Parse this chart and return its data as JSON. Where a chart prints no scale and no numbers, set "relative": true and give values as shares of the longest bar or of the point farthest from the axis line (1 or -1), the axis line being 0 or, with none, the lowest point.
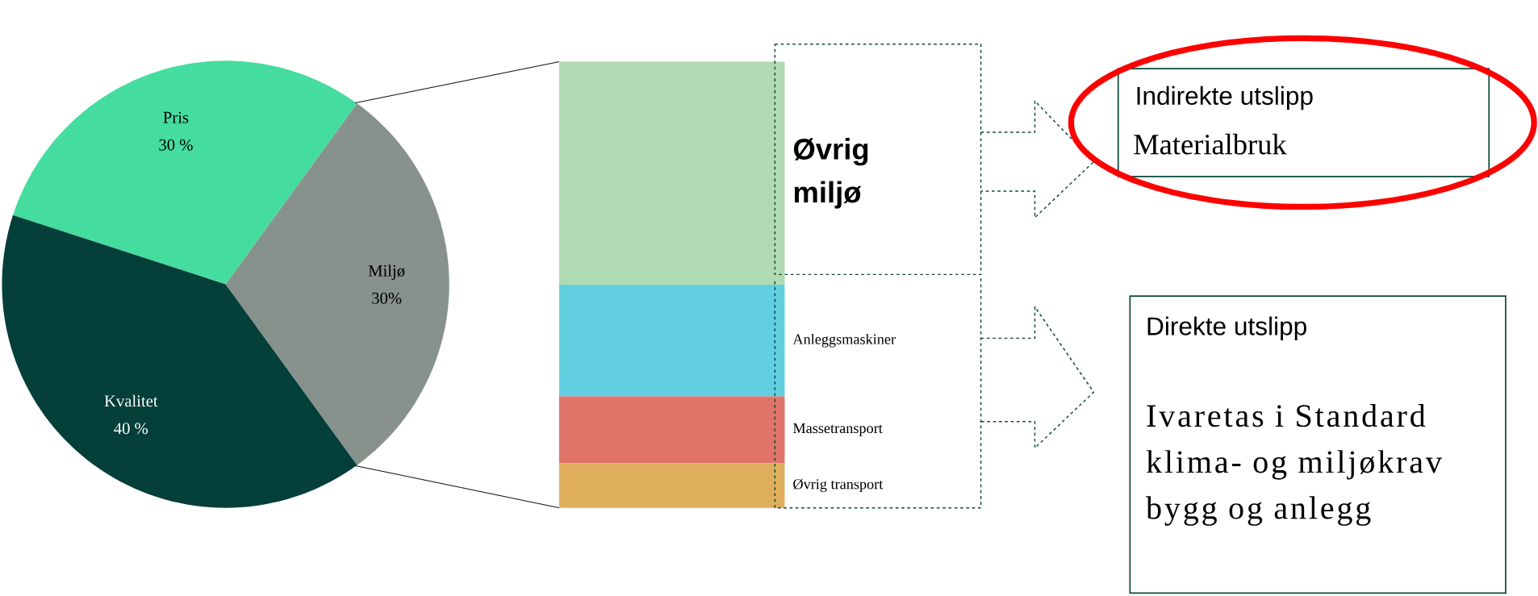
{
  "chart_data": [
    {
      "type": "pie",
      "categories": [
        "Pris",
        "Miljø",
        "Kvalitet"
      ],
      "values": [
        30,
        30,
        40
      ],
      "colors": [
        "#45dca0",
        "#87928c",
        "#053f3a"
      ],
      "value_labels": [
        "30 %",
        "30%",
        "40 %"
      ]
    },
    {
      "type": "bar",
      "stacked": true,
      "relative": true,
      "categories": [
        null
      ],
      "series": [
        {
          "name": "Øvrig transport",
          "color": "#dfae5c",
          "values": [
            0.1
          ]
        },
        {
          "name": "Massetransport",
          "color": "#e07468",
          "values": [
            0.15
          ]
        },
        {
          "name": "Anleggsmaskiner",
          "color": "#62cfe1",
          "values": [
            0.25
          ]
        },
        {
          "name": "Øvrig miljø",
          "color": "#b0dab2",
          "values": [
            0.5
          ]
        }
      ]
    },
    {
      "type": "other",
      "annotations": [
        "Indirekte utslipp",
        "Materialbruk",
        "Direkte utslipp",
        "Ivaretas i Standard klima- og miljøkrav bygg og anlegg"
      ]
    }
  ]
}
